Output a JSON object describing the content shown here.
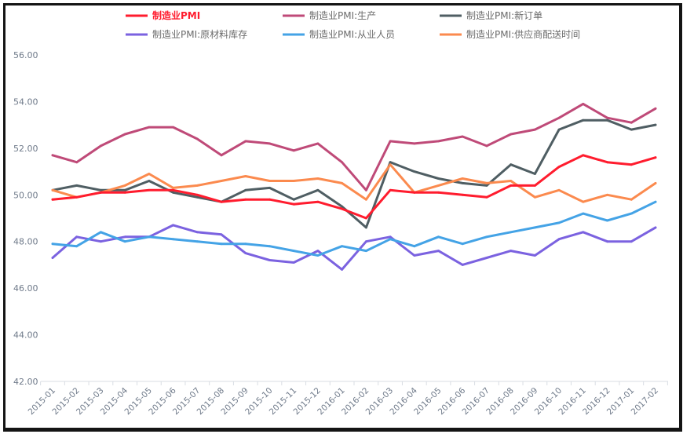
{
  "chart_data": {
    "type": "line",
    "title": "",
    "xlabel": "",
    "ylabel": "",
    "ylim": [
      42,
      56
    ],
    "y_ticks": [
      "42.00",
      "44.00",
      "46.00",
      "48.00",
      "50.00",
      "52.00",
      "54.00",
      "56.00"
    ],
    "y_tick_values": [
      42,
      44,
      46,
      48,
      50,
      52,
      54,
      56
    ],
    "grid": false,
    "legend_position": "top",
    "categories": [
      "2015-01",
      "2015-02",
      "2015-03",
      "2015-04",
      "2015-05",
      "2015-06",
      "2015-07",
      "2015-08",
      "2015-09",
      "2015-10",
      "2015-11",
      "2015-12",
      "2016-01",
      "2016-02",
      "2016-03",
      "2016-04",
      "2016-05",
      "2016-06",
      "2016-07",
      "2016-08",
      "2016-09",
      "2016-10",
      "2016-11",
      "2016-12",
      "2017-01",
      "2017-02"
    ],
    "series": [
      {
        "name": "制造业PMI",
        "color": "#ff1c2e",
        "bold": true,
        "values": [
          49.8,
          49.9,
          50.1,
          50.1,
          50.2,
          50.2,
          50.0,
          49.7,
          49.8,
          49.8,
          49.6,
          49.7,
          49.4,
          49.0,
          50.2,
          50.1,
          50.1,
          50.0,
          49.9,
          50.4,
          50.4,
          51.2,
          51.7,
          51.4,
          51.3,
          51.6
        ]
      },
      {
        "name": "制造业PMI:生产",
        "color": "#bf4a78",
        "values": [
          51.7,
          51.4,
          52.1,
          52.6,
          52.9,
          52.9,
          52.4,
          51.7,
          52.3,
          52.2,
          51.9,
          52.2,
          51.4,
          50.2,
          52.3,
          52.2,
          52.3,
          52.5,
          52.1,
          52.6,
          52.8,
          53.3,
          53.9,
          53.3,
          53.1,
          53.7
        ]
      },
      {
        "name": "制造业PMI:新订单",
        "color": "#4f5e63",
        "values": [
          50.2,
          50.4,
          50.2,
          50.2,
          50.6,
          50.1,
          49.9,
          49.7,
          50.2,
          50.3,
          49.8,
          50.2,
          49.5,
          48.6,
          51.4,
          51.0,
          50.7,
          50.5,
          50.4,
          51.3,
          50.9,
          52.8,
          53.2,
          53.2,
          52.8,
          53.0
        ]
      },
      {
        "name": "制造业PMI:原材料库存",
        "color": "#7b62e0",
        "values": [
          47.3,
          48.2,
          48.0,
          48.2,
          48.2,
          48.7,
          48.4,
          48.3,
          47.5,
          47.2,
          47.1,
          47.6,
          46.8,
          48.0,
          48.2,
          47.4,
          47.6,
          47.0,
          47.3,
          47.6,
          47.4,
          48.1,
          48.4,
          48.0,
          48.0,
          48.6
        ]
      },
      {
        "name": "制造业PMI:从业人员",
        "color": "#44a3e6",
        "values": [
          47.9,
          47.8,
          48.4,
          48.0,
          48.2,
          48.1,
          48.0,
          47.9,
          47.9,
          47.8,
          47.6,
          47.4,
          47.8,
          47.6,
          48.1,
          47.8,
          48.2,
          47.9,
          48.2,
          48.4,
          48.6,
          48.8,
          49.2,
          48.9,
          49.2,
          49.7
        ]
      },
      {
        "name": "制造业PMI:供应商配送时间",
        "color": "#fb8a4e",
        "values": [
          50.2,
          49.9,
          50.1,
          50.4,
          50.9,
          50.3,
          50.4,
          50.6,
          50.8,
          50.6,
          50.6,
          50.7,
          50.5,
          49.8,
          51.3,
          50.1,
          50.4,
          50.7,
          50.5,
          50.6,
          49.9,
          50.2,
          49.7,
          50.0,
          49.8,
          50.5
        ]
      }
    ]
  }
}
